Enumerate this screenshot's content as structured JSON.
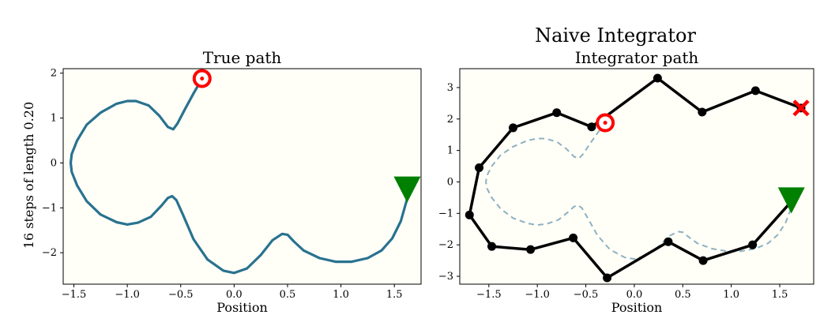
{
  "figure": {
    "suptitle": "Naive Integrator",
    "row_label": "16 steps of length 0.20"
  },
  "colors": {
    "true_path": "#29728f",
    "true_path_dashed": "#8fb0c0",
    "integrator_path": "#000000",
    "start_marker": "#ff0000",
    "end_marker": "#008000",
    "plot_background": "#fffff8"
  },
  "chart_data": [
    {
      "type": "line",
      "title": "True path",
      "xlabel": "Position",
      "ylabel": "",
      "xlim": [
        -1.6,
        1.75
      ],
      "ylim": [
        -2.7,
        2.1
      ],
      "xticks": [
        -1.5,
        -1.0,
        -0.5,
        0.0,
        0.5,
        1.0,
        1.5
      ],
      "xtick_labels": [
        "−1.5",
        "−1.0",
        "−0.5",
        "0.0",
        "0.5",
        "1.0",
        "1.5"
      ],
      "yticks": [
        -2,
        -1,
        0,
        1,
        2
      ],
      "ytick_labels": [
        "−2",
        "−1",
        "0",
        "1",
        "2"
      ],
      "series": [
        {
          "style": "solid",
          "x": [
            -0.3,
            -0.38,
            -0.46,
            -0.53,
            -0.57,
            -0.62,
            -0.7,
            -0.8,
            -0.92,
            -1.0,
            -1.1,
            -1.25,
            -1.38,
            -1.47,
            -1.52,
            -1.53,
            -1.52,
            -1.47,
            -1.38,
            -1.25,
            -1.1,
            -1.0,
            -0.9,
            -0.78,
            -0.68,
            -0.62,
            -0.58,
            -0.54,
            -0.48,
            -0.38,
            -0.25,
            -0.1,
            0.0,
            0.12,
            0.25,
            0.36,
            0.45,
            0.5,
            0.56,
            0.65,
            0.8,
            0.95,
            1.1,
            1.25,
            1.38,
            1.48,
            1.56,
            1.62
          ],
          "y": [
            1.88,
            1.55,
            1.2,
            0.88,
            0.75,
            0.8,
            1.05,
            1.28,
            1.38,
            1.38,
            1.32,
            1.12,
            0.85,
            0.5,
            0.2,
            0.0,
            -0.2,
            -0.5,
            -0.85,
            -1.15,
            -1.32,
            -1.37,
            -1.33,
            -1.2,
            -0.95,
            -0.78,
            -0.74,
            -0.83,
            -1.15,
            -1.7,
            -2.15,
            -2.4,
            -2.45,
            -2.35,
            -2.05,
            -1.72,
            -1.58,
            -1.6,
            -1.75,
            -1.95,
            -2.12,
            -2.2,
            -2.2,
            -2.12,
            -1.95,
            -1.68,
            -1.3,
            -0.8
          ]
        }
      ],
      "markers": [
        {
          "kind": "target",
          "x": -0.3,
          "y": 1.88
        },
        {
          "kind": "triangle-down",
          "x": 1.62,
          "y": -0.6
        }
      ]
    },
    {
      "type": "line",
      "title": "Integrator path",
      "xlabel": "Position",
      "ylabel": "",
      "xlim": [
        -1.8,
        1.85
      ],
      "ylim": [
        -3.25,
        3.6
      ],
      "xticks": [
        -1.5,
        -1.0,
        -0.5,
        0.0,
        0.5,
        1.0,
        1.5
      ],
      "xtick_labels": [
        "−1.5",
        "−1.0",
        "−0.5",
        "0.0",
        "0.5",
        "1.0",
        "1.5"
      ],
      "yticks": [
        -3,
        -2,
        -1,
        0,
        1,
        2,
        3
      ],
      "ytick_labels": [
        "−3",
        "−2",
        "−1",
        "0",
        "1",
        "2",
        "3"
      ],
      "series": [
        {
          "style": "dashed",
          "x": [
            -0.3,
            -0.38,
            -0.46,
            -0.53,
            -0.57,
            -0.62,
            -0.7,
            -0.8,
            -0.92,
            -1.0,
            -1.1,
            -1.25,
            -1.38,
            -1.47,
            -1.52,
            -1.53,
            -1.52,
            -1.47,
            -1.38,
            -1.25,
            -1.1,
            -1.0,
            -0.9,
            -0.78,
            -0.68,
            -0.62,
            -0.58,
            -0.54,
            -0.48,
            -0.38,
            -0.25,
            -0.1,
            0.0,
            0.12,
            0.25,
            0.36,
            0.45,
            0.5,
            0.56,
            0.65,
            0.8,
            0.95,
            1.1,
            1.25,
            1.38,
            1.48,
            1.56,
            1.62
          ],
          "y": [
            1.88,
            1.55,
            1.2,
            0.88,
            0.75,
            0.8,
            1.05,
            1.28,
            1.38,
            1.38,
            1.32,
            1.12,
            0.85,
            0.5,
            0.2,
            0.0,
            -0.2,
            -0.5,
            -0.85,
            -1.15,
            -1.32,
            -1.37,
            -1.33,
            -1.2,
            -0.95,
            -0.78,
            -0.74,
            -0.83,
            -1.15,
            -1.7,
            -2.15,
            -2.4,
            -2.45,
            -2.35,
            -2.05,
            -1.72,
            -1.58,
            -1.6,
            -1.75,
            -1.95,
            -2.12,
            -2.2,
            -2.2,
            -2.12,
            -1.95,
            -1.68,
            -1.3,
            -0.8
          ]
        },
        {
          "style": "solid-points",
          "x": [
            1.62,
            1.22,
            0.71,
            0.35,
            -0.28,
            -0.63,
            -1.07,
            -1.47,
            -1.7,
            -1.6,
            -1.25,
            -0.8,
            -0.44,
            0.24,
            0.7,
            1.25,
            1.72
          ],
          "y": [
            -0.62,
            -2.0,
            -2.5,
            -1.9,
            -3.05,
            -1.78,
            -2.15,
            -2.05,
            -1.05,
            0.45,
            1.72,
            2.2,
            1.75,
            3.3,
            2.22,
            2.9,
            2.35
          ]
        }
      ],
      "markers": [
        {
          "kind": "target",
          "x": -0.3,
          "y": 1.88
        },
        {
          "kind": "triangle-down",
          "x": 1.62,
          "y": -0.6
        },
        {
          "kind": "x",
          "x": 1.72,
          "y": 2.35
        }
      ]
    }
  ]
}
